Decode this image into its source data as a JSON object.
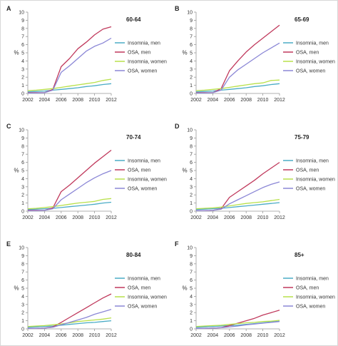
{
  "figure": {
    "panel_letters": [
      "A",
      "B",
      "C",
      "D",
      "E",
      "F"
    ],
    "y_unit": "%",
    "series_names": [
      "Insomnia, men",
      "OSA, men",
      "Insomnia, women",
      "OSA, women"
    ],
    "series_colors": [
      "#4bacc6",
      "#c0395c",
      "#b8e04a",
      "#8b87d6"
    ]
  },
  "chart_data": [
    {
      "type": "line",
      "panel": "A",
      "title": "60-64",
      "ylim": [
        0,
        10
      ],
      "xlim": [
        2002,
        2012
      ],
      "x": [
        2002,
        2003,
        2004,
        2005,
        2006,
        2007,
        2008,
        2009,
        2010,
        2011,
        2012
      ],
      "xticks": [
        "2002",
        "2004",
        "2006",
        "2008",
        "2010",
        "2012"
      ],
      "yticks": [
        "0",
        "1",
        "2",
        "3",
        "4",
        "5",
        "6",
        "7",
        "8",
        "9",
        "10"
      ],
      "grid": false,
      "legend": "right",
      "series": [
        {
          "name": "Insomnia, men",
          "values": [
            0.2,
            0.25,
            0.3,
            0.4,
            0.5,
            0.6,
            0.7,
            0.85,
            0.95,
            1.1,
            1.2
          ]
        },
        {
          "name": "OSA, men",
          "values": [
            0.1,
            0.1,
            0.1,
            0.5,
            3.3,
            4.3,
            5.5,
            6.3,
            7.2,
            7.9,
            8.2
          ]
        },
        {
          "name": "Insomnia, women",
          "values": [
            0.35,
            0.4,
            0.5,
            0.6,
            0.75,
            0.9,
            1.05,
            1.2,
            1.35,
            1.6,
            1.75
          ]
        },
        {
          "name": "OSA, women",
          "values": [
            0.05,
            0.05,
            0.1,
            0.4,
            2.6,
            3.4,
            4.3,
            5.2,
            5.8,
            6.2,
            6.8
          ]
        }
      ]
    },
    {
      "type": "line",
      "panel": "B",
      "title": "65-69",
      "ylim": [
        0,
        10
      ],
      "xlim": [
        2002,
        2012
      ],
      "x": [
        2002,
        2003,
        2004,
        2005,
        2006,
        2007,
        2008,
        2009,
        2010,
        2011,
        2012
      ],
      "xticks": [
        "2002",
        "2004",
        "2006",
        "2008",
        "2010",
        "2012"
      ],
      "yticks": [
        "0",
        "1",
        "2",
        "3",
        "4",
        "5",
        "6",
        "7",
        "8",
        "9",
        "10"
      ],
      "grid": false,
      "legend": "right",
      "series": [
        {
          "name": "Insomnia, men",
          "values": [
            0.2,
            0.25,
            0.3,
            0.4,
            0.5,
            0.6,
            0.7,
            0.85,
            0.95,
            1.1,
            1.2
          ]
        },
        {
          "name": "OSA, men",
          "values": [
            0.1,
            0.1,
            0.1,
            0.6,
            2.8,
            4.0,
            5.1,
            6.0,
            6.8,
            7.6,
            8.4
          ]
        },
        {
          "name": "Insomnia, women",
          "values": [
            0.35,
            0.4,
            0.5,
            0.6,
            0.75,
            0.9,
            1.05,
            1.2,
            1.3,
            1.6,
            1.65
          ]
        },
        {
          "name": "OSA, women",
          "values": [
            0.05,
            0.05,
            0.1,
            0.4,
            2.0,
            2.9,
            3.6,
            4.3,
            5.0,
            5.6,
            6.2
          ]
        }
      ]
    },
    {
      "type": "line",
      "panel": "C",
      "title": "70-74",
      "ylim": [
        0,
        10
      ],
      "xlim": [
        2002,
        2012
      ],
      "x": [
        2002,
        2003,
        2004,
        2005,
        2006,
        2007,
        2008,
        2009,
        2010,
        2011,
        2012
      ],
      "xticks": [
        "2002",
        "2004",
        "2006",
        "2008",
        "2010",
        "2012"
      ],
      "yticks": [
        "0",
        "1",
        "2",
        "3",
        "4",
        "5",
        "6",
        "7",
        "8",
        "9",
        "10"
      ],
      "grid": false,
      "legend": "right",
      "series": [
        {
          "name": "Insomnia, men",
          "values": [
            0.2,
            0.25,
            0.3,
            0.35,
            0.45,
            0.55,
            0.65,
            0.75,
            0.85,
            1.0,
            1.1
          ]
        },
        {
          "name": "OSA, men",
          "values": [
            0.1,
            0.1,
            0.1,
            0.4,
            2.4,
            3.2,
            4.1,
            5.0,
            5.9,
            6.7,
            7.5
          ]
        },
        {
          "name": "Insomnia, women",
          "values": [
            0.3,
            0.35,
            0.45,
            0.55,
            0.7,
            0.85,
            1.0,
            1.1,
            1.2,
            1.45,
            1.55
          ]
        },
        {
          "name": "OSA, women",
          "values": [
            0.05,
            0.05,
            0.1,
            0.3,
            1.4,
            2.1,
            2.8,
            3.5,
            4.1,
            4.6,
            5.0
          ]
        }
      ]
    },
    {
      "type": "line",
      "panel": "D",
      "title": "75-79",
      "ylim": [
        0,
        10
      ],
      "xlim": [
        2002,
        2012
      ],
      "x": [
        2002,
        2003,
        2004,
        2005,
        2006,
        2007,
        2008,
        2009,
        2010,
        2011,
        2012
      ],
      "xticks": [
        "2002",
        "2004",
        "2006",
        "2008",
        "2010",
        "2012"
      ],
      "yticks": [
        "0",
        "1",
        "2",
        "3",
        "4",
        "5",
        "6",
        "7",
        "8",
        "9",
        "10"
      ],
      "grid": false,
      "legend": "right",
      "series": [
        {
          "name": "Insomnia, men",
          "values": [
            0.2,
            0.25,
            0.3,
            0.35,
            0.45,
            0.55,
            0.65,
            0.75,
            0.85,
            0.95,
            1.05
          ]
        },
        {
          "name": "OSA, men",
          "values": [
            0.05,
            0.05,
            0.1,
            0.3,
            1.7,
            2.4,
            3.1,
            3.8,
            4.6,
            5.3,
            6.0
          ]
        },
        {
          "name": "Insomnia, women",
          "values": [
            0.3,
            0.35,
            0.4,
            0.5,
            0.65,
            0.8,
            0.95,
            1.05,
            1.15,
            1.3,
            1.45
          ]
        },
        {
          "name": "OSA, women",
          "values": [
            0.05,
            0.05,
            0.1,
            0.25,
            0.9,
            1.4,
            1.9,
            2.4,
            2.9,
            3.3,
            3.6
          ]
        }
      ]
    },
    {
      "type": "line",
      "panel": "E",
      "title": "80-84",
      "ylim": [
        0,
        10
      ],
      "xlim": [
        2002,
        2012
      ],
      "x": [
        2002,
        2003,
        2004,
        2005,
        2006,
        2007,
        2008,
        2009,
        2010,
        2011,
        2012
      ],
      "xticks": [
        "2002",
        "2004",
        "2006",
        "2008",
        "2010",
        "2012"
      ],
      "yticks": [
        "0",
        "1",
        "2",
        "3",
        "4",
        "5",
        "6",
        "7",
        "8",
        "9",
        "10"
      ],
      "grid": false,
      "legend": "right",
      "series": [
        {
          "name": "Insomnia, men",
          "values": [
            0.2,
            0.25,
            0.3,
            0.35,
            0.45,
            0.55,
            0.65,
            0.75,
            0.8,
            0.9,
            1.0
          ]
        },
        {
          "name": "OSA, men",
          "values": [
            0.05,
            0.05,
            0.1,
            0.25,
            0.8,
            1.4,
            2.0,
            2.6,
            3.2,
            3.8,
            4.3
          ]
        },
        {
          "name": "Insomnia, women",
          "values": [
            0.3,
            0.35,
            0.4,
            0.5,
            0.6,
            0.75,
            0.9,
            1.0,
            1.1,
            1.2,
            1.35
          ]
        },
        {
          "name": "OSA, women",
          "values": [
            0.05,
            0.05,
            0.1,
            0.2,
            0.5,
            0.8,
            1.1,
            1.4,
            1.8,
            2.1,
            2.4
          ]
        }
      ]
    },
    {
      "type": "line",
      "panel": "F",
      "title": "85+",
      "ylim": [
        0,
        10
      ],
      "xlim": [
        2002,
        2012
      ],
      "x": [
        2002,
        2003,
        2004,
        2005,
        2006,
        2007,
        2008,
        2009,
        2010,
        2011,
        2012
      ],
      "xticks": [
        "2002",
        "2004",
        "2006",
        "2008",
        "2010",
        "2012"
      ],
      "yticks": [
        "0",
        "1",
        "2",
        "3",
        "4",
        "5",
        "6",
        "7",
        "8",
        "9",
        "10"
      ],
      "grid": false,
      "legend": "right",
      "series": [
        {
          "name": "Insomnia, men",
          "values": [
            0.2,
            0.25,
            0.3,
            0.35,
            0.4,
            0.45,
            0.55,
            0.65,
            0.75,
            0.85,
            0.95
          ]
        },
        {
          "name": "OSA, men",
          "values": [
            0.05,
            0.05,
            0.1,
            0.15,
            0.4,
            0.7,
            1.0,
            1.3,
            1.7,
            2.0,
            2.3
          ]
        },
        {
          "name": "Insomnia, women",
          "values": [
            0.3,
            0.35,
            0.4,
            0.45,
            0.55,
            0.65,
            0.75,
            0.8,
            0.9,
            0.95,
            1.05
          ]
        },
        {
          "name": "OSA, women",
          "values": [
            0.05,
            0.05,
            0.1,
            0.15,
            0.25,
            0.35,
            0.5,
            0.6,
            0.7,
            0.8,
            0.9
          ]
        }
      ]
    }
  ]
}
